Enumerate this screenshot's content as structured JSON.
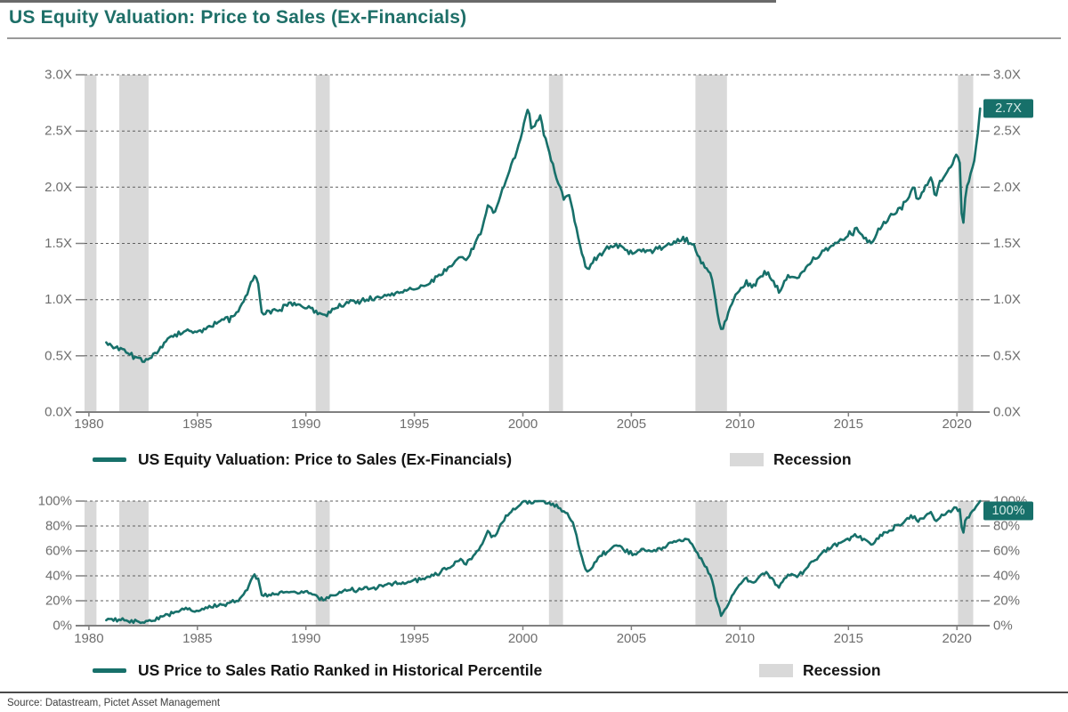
{
  "title": "US Equity Valuation: Price to Sales (Ex-Financials)",
  "source": "Source: Datastream, Pictet Asset Management",
  "colors": {
    "line": "#17706a",
    "recession": "#d9d9d9",
    "grid": "#5f5f5f",
    "axis": "#808080",
    "tick_label": "#6e6e6e",
    "badge_bg": "#17706a",
    "badge_text": "#d5eae6",
    "title": "#1e6f68",
    "legend_text": "#141414"
  },
  "chart_data": [
    {
      "type": "line",
      "name": "us-equity-price-to-sales",
      "legend": "US Equity Valuation: Price to Sales (Ex-Financials)",
      "legend_recession": "Recession",
      "badge": "2.7X",
      "unit": "X",
      "ylim": [
        0,
        3
      ],
      "y_ticks": [
        0,
        0.5,
        1.0,
        1.5,
        2.0,
        2.5,
        3.0
      ],
      "y_tick_labels": [
        "0.0X",
        "0.5X",
        "1.0X",
        "1.5X",
        "2.0X",
        "2.5X",
        "3.0X"
      ],
      "x_range": [
        1979.8,
        2021.1
      ],
      "x_ticks": [
        1980,
        1985,
        1990,
        1995,
        2000,
        2005,
        2010,
        2015,
        2020
      ],
      "grid": true,
      "legend_position": "bottom",
      "recessions": [
        [
          1979.8,
          1980.35
        ],
        [
          1981.4,
          1982.75
        ],
        [
          1990.45,
          1991.1
        ],
        [
          2001.2,
          2001.85
        ],
        [
          2007.95,
          2009.4
        ],
        [
          2020.05,
          2020.75
        ]
      ],
      "points": [
        [
          1980.8,
          0.6
        ],
        [
          1981.2,
          0.57
        ],
        [
          1981.6,
          0.55
        ],
        [
          1982.0,
          0.5
        ],
        [
          1982.4,
          0.46
        ],
        [
          1982.8,
          0.47
        ],
        [
          1983.2,
          0.56
        ],
        [
          1983.6,
          0.63
        ],
        [
          1984.0,
          0.68
        ],
        [
          1984.5,
          0.73
        ],
        [
          1985.0,
          0.71
        ],
        [
          1985.5,
          0.75
        ],
        [
          1986.0,
          0.8
        ],
        [
          1986.5,
          0.83
        ],
        [
          1987.0,
          0.92
        ],
        [
          1987.3,
          1.05
        ],
        [
          1987.6,
          1.22
        ],
        [
          1987.8,
          1.15
        ],
        [
          1987.95,
          0.87
        ],
        [
          1988.3,
          0.89
        ],
        [
          1988.8,
          0.92
        ],
        [
          1989.3,
          0.96
        ],
        [
          1989.8,
          0.95
        ],
        [
          1990.2,
          0.93
        ],
        [
          1990.6,
          0.87
        ],
        [
          1990.9,
          0.85
        ],
        [
          1991.3,
          0.92
        ],
        [
          1991.8,
          0.96
        ],
        [
          1992.3,
          0.98
        ],
        [
          1992.8,
          1.0
        ],
        [
          1993.3,
          1.02
        ],
        [
          1993.8,
          1.05
        ],
        [
          1994.3,
          1.07
        ],
        [
          1994.8,
          1.08
        ],
        [
          1995.3,
          1.1
        ],
        [
          1995.8,
          1.17
        ],
        [
          1996.3,
          1.24
        ],
        [
          1996.8,
          1.32
        ],
        [
          1997.1,
          1.4
        ],
        [
          1997.4,
          1.35
        ],
        [
          1997.8,
          1.5
        ],
        [
          1998.1,
          1.62
        ],
        [
          1998.4,
          1.85
        ],
        [
          1998.7,
          1.76
        ],
        [
          1999.0,
          1.95
        ],
        [
          1999.3,
          2.1
        ],
        [
          1999.6,
          2.25
        ],
        [
          1999.9,
          2.45
        ],
        [
          2000.1,
          2.6
        ],
        [
          2000.25,
          2.72
        ],
        [
          2000.4,
          2.5
        ],
        [
          2000.6,
          2.58
        ],
        [
          2000.8,
          2.62
        ],
        [
          2001.0,
          2.45
        ],
        [
          2001.3,
          2.25
        ],
        [
          2001.6,
          2.05
        ],
        [
          2001.9,
          1.9
        ],
        [
          2002.1,
          1.95
        ],
        [
          2002.4,
          1.7
        ],
        [
          2002.7,
          1.42
        ],
        [
          2002.95,
          1.26
        ],
        [
          2003.2,
          1.33
        ],
        [
          2003.5,
          1.4
        ],
        [
          2003.9,
          1.45
        ],
        [
          2004.3,
          1.48
        ],
        [
          2004.7,
          1.44
        ],
        [
          2005.1,
          1.42
        ],
        [
          2005.5,
          1.45
        ],
        [
          2005.9,
          1.43
        ],
        [
          2006.3,
          1.46
        ],
        [
          2006.7,
          1.48
        ],
        [
          2007.1,
          1.52
        ],
        [
          2007.5,
          1.54
        ],
        [
          2007.8,
          1.5
        ],
        [
          2008.1,
          1.38
        ],
        [
          2008.4,
          1.3
        ],
        [
          2008.7,
          1.2
        ],
        [
          2008.95,
          0.9
        ],
        [
          2009.15,
          0.72
        ],
        [
          2009.4,
          0.85
        ],
        [
          2009.7,
          1.0
        ],
        [
          2010.0,
          1.1
        ],
        [
          2010.3,
          1.15
        ],
        [
          2010.6,
          1.1
        ],
        [
          2010.9,
          1.2
        ],
        [
          2011.2,
          1.25
        ],
        [
          2011.5,
          1.18
        ],
        [
          2011.8,
          1.08
        ],
        [
          2012.1,
          1.18
        ],
        [
          2012.4,
          1.22
        ],
        [
          2012.7,
          1.2
        ],
        [
          2013.0,
          1.28
        ],
        [
          2013.4,
          1.35
        ],
        [
          2013.8,
          1.42
        ],
        [
          2014.2,
          1.48
        ],
        [
          2014.6,
          1.52
        ],
        [
          2015.0,
          1.58
        ],
        [
          2015.4,
          1.62
        ],
        [
          2015.8,
          1.55
        ],
        [
          2016.1,
          1.5
        ],
        [
          2016.4,
          1.62
        ],
        [
          2016.8,
          1.7
        ],
        [
          2017.2,
          1.78
        ],
        [
          2017.6,
          1.85
        ],
        [
          2018.0,
          2.0
        ],
        [
          2018.2,
          1.88
        ],
        [
          2018.5,
          1.98
        ],
        [
          2018.8,
          2.1
        ],
        [
          2019.0,
          1.92
        ],
        [
          2019.2,
          2.05
        ],
        [
          2019.5,
          2.12
        ],
        [
          2019.8,
          2.2
        ],
        [
          2020.0,
          2.3
        ],
        [
          2020.15,
          2.2
        ],
        [
          2020.25,
          1.57
        ],
        [
          2020.4,
          1.95
        ],
        [
          2020.6,
          2.1
        ],
        [
          2020.8,
          2.25
        ],
        [
          2020.95,
          2.45
        ],
        [
          2021.07,
          2.7
        ]
      ]
    },
    {
      "type": "line",
      "name": "us-price-to-sales-percentile",
      "legend": "US Price to Sales Ratio Ranked in Historical Percentile",
      "legend_recession": "Recession",
      "badge": "100%",
      "unit": "%",
      "ylim": [
        0,
        100
      ],
      "y_ticks": [
        0,
        20,
        40,
        60,
        80,
        100
      ],
      "y_tick_labels": [
        "0%",
        "20%",
        "40%",
        "60%",
        "80%",
        "100%"
      ],
      "x_range": [
        1979.8,
        2021.1
      ],
      "x_ticks": [
        1980,
        1985,
        1990,
        1995,
        2000,
        2005,
        2010,
        2015,
        2020
      ],
      "grid": true,
      "legend_position": "bottom",
      "recessions": [
        [
          1979.8,
          1980.35
        ],
        [
          1981.4,
          1982.75
        ],
        [
          1990.45,
          1991.1
        ],
        [
          2001.2,
          2001.85
        ],
        [
          2007.95,
          2009.4
        ],
        [
          2020.05,
          2020.75
        ]
      ],
      "points": [
        [
          1980.8,
          5
        ],
        [
          1981.2,
          4
        ],
        [
          1981.6,
          4
        ],
        [
          1982.0,
          3
        ],
        [
          1982.4,
          2
        ],
        [
          1982.8,
          3
        ],
        [
          1983.2,
          6
        ],
        [
          1983.6,
          9
        ],
        [
          1984.0,
          11
        ],
        [
          1984.5,
          13
        ],
        [
          1985.0,
          12
        ],
        [
          1985.5,
          14
        ],
        [
          1986.0,
          16
        ],
        [
          1986.5,
          18
        ],
        [
          1987.0,
          22
        ],
        [
          1987.3,
          30
        ],
        [
          1987.6,
          41
        ],
        [
          1987.8,
          37
        ],
        [
          1987.95,
          24
        ],
        [
          1988.3,
          25
        ],
        [
          1988.8,
          26
        ],
        [
          1989.3,
          28
        ],
        [
          1989.8,
          27
        ],
        [
          1990.2,
          26
        ],
        [
          1990.6,
          22
        ],
        [
          1990.9,
          21
        ],
        [
          1991.3,
          25
        ],
        [
          1991.8,
          28
        ],
        [
          1992.3,
          29
        ],
        [
          1992.8,
          30
        ],
        [
          1993.3,
          31
        ],
        [
          1993.8,
          33
        ],
        [
          1994.3,
          34
        ],
        [
          1994.8,
          35
        ],
        [
          1995.3,
          37
        ],
        [
          1995.8,
          40
        ],
        [
          1996.3,
          44
        ],
        [
          1996.8,
          48
        ],
        [
          1997.1,
          53
        ],
        [
          1997.4,
          50
        ],
        [
          1997.8,
          58
        ],
        [
          1998.1,
          65
        ],
        [
          1998.4,
          76
        ],
        [
          1998.7,
          70
        ],
        [
          1999.0,
          82
        ],
        [
          1999.3,
          89
        ],
        [
          1999.6,
          94
        ],
        [
          1999.9,
          98
        ],
        [
          2000.1,
          99
        ],
        [
          2000.3,
          100
        ],
        [
          2000.6,
          99
        ],
        [
          2000.9,
          100
        ],
        [
          2001.2,
          98
        ],
        [
          2001.5,
          96
        ],
        [
          2001.9,
          92
        ],
        [
          2002.1,
          90
        ],
        [
          2002.4,
          78
        ],
        [
          2002.7,
          55
        ],
        [
          2002.95,
          43
        ],
        [
          2003.2,
          48
        ],
        [
          2003.5,
          55
        ],
        [
          2003.9,
          60
        ],
        [
          2004.3,
          65
        ],
        [
          2004.7,
          60
        ],
        [
          2005.1,
          57
        ],
        [
          2005.5,
          61
        ],
        [
          2005.9,
          59
        ],
        [
          2006.3,
          62
        ],
        [
          2006.7,
          65
        ],
        [
          2007.1,
          68
        ],
        [
          2007.5,
          70
        ],
        [
          2007.8,
          66
        ],
        [
          2008.1,
          56
        ],
        [
          2008.4,
          48
        ],
        [
          2008.7,
          38
        ],
        [
          2008.95,
          18
        ],
        [
          2009.15,
          8
        ],
        [
          2009.4,
          15
        ],
        [
          2009.7,
          25
        ],
        [
          2010.0,
          33
        ],
        [
          2010.3,
          38
        ],
        [
          2010.6,
          33
        ],
        [
          2010.9,
          40
        ],
        [
          2011.2,
          43
        ],
        [
          2011.5,
          37
        ],
        [
          2011.8,
          30
        ],
        [
          2012.1,
          38
        ],
        [
          2012.4,
          42
        ],
        [
          2012.7,
          40
        ],
        [
          2013.0,
          45
        ],
        [
          2013.4,
          52
        ],
        [
          2013.8,
          58
        ],
        [
          2014.2,
          63
        ],
        [
          2014.6,
          66
        ],
        [
          2015.0,
          70
        ],
        [
          2015.4,
          73
        ],
        [
          2015.8,
          68
        ],
        [
          2016.1,
          65
        ],
        [
          2016.4,
          72
        ],
        [
          2016.8,
          76
        ],
        [
          2017.2,
          80
        ],
        [
          2017.6,
          84
        ],
        [
          2018.0,
          88
        ],
        [
          2018.2,
          83
        ],
        [
          2018.5,
          87
        ],
        [
          2018.8,
          91
        ],
        [
          2019.0,
          84
        ],
        [
          2019.2,
          88
        ],
        [
          2019.5,
          90
        ],
        [
          2019.8,
          93
        ],
        [
          2020.0,
          95
        ],
        [
          2020.15,
          92
        ],
        [
          2020.25,
          70
        ],
        [
          2020.4,
          85
        ],
        [
          2020.6,
          89
        ],
        [
          2020.8,
          93
        ],
        [
          2020.95,
          97
        ],
        [
          2021.07,
          100
        ]
      ]
    }
  ]
}
